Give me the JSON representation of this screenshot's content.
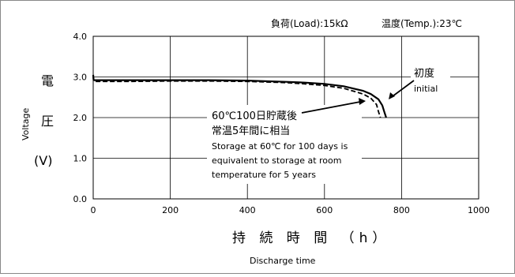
{
  "chart_data": {
    "type": "line",
    "conditions": {
      "load": "負荷(Load):15kΩ",
      "temp": "温度(Temp.):23℃"
    },
    "xlabel_jp": "持 続 時 間 （h）",
    "xlabel_en": "Discharge time",
    "ylabel_jp_1": "電",
    "ylabel_jp_2": "圧",
    "ylabel_unit": "(V)",
    "ylabel_en": "Voltage",
    "xlim": [
      0,
      1000
    ],
    "ylim": [
      0,
      4
    ],
    "x_ticks": [
      "0",
      "200",
      "400",
      "600",
      "800",
      "1000"
    ],
    "y_ticks": [
      "0.0",
      "1.0",
      "2.0",
      "3.0",
      "4.0"
    ],
    "grid": true,
    "series": [
      {
        "name": "初度 initial",
        "style": "solid",
        "color": "#000000",
        "x": [
          0,
          1,
          3,
          100,
          200,
          300,
          400,
          500,
          550,
          600,
          650,
          700,
          720,
          740,
          750,
          755,
          760
        ],
        "y": [
          3.05,
          2.93,
          2.92,
          2.92,
          2.92,
          2.92,
          2.91,
          2.88,
          2.86,
          2.83,
          2.77,
          2.66,
          2.58,
          2.45,
          2.3,
          2.15,
          2.0
        ]
      },
      {
        "name": "60℃100日貯蔵後 常温5年間に相当",
        "style": "dashed",
        "color": "#000000",
        "x": [
          0,
          1,
          3,
          100,
          200,
          300,
          400,
          500,
          550,
          600,
          650,
          700,
          720,
          735,
          740,
          745
        ],
        "y": [
          3.02,
          2.9,
          2.89,
          2.89,
          2.9,
          2.9,
          2.89,
          2.86,
          2.83,
          2.79,
          2.72,
          2.58,
          2.48,
          2.32,
          2.15,
          2.0
        ]
      }
    ],
    "annotations": {
      "initial_jp": "初度",
      "initial_en": "initial",
      "stored_jp_1": "60℃100日貯蔵後",
      "stored_jp_2": "常温5年間に相当",
      "stored_en_1": "Storage at 60℃ for 100 days is",
      "stored_en_2": "equivalent to storage at room",
      "stored_en_3": "temperature for 5 years"
    }
  }
}
